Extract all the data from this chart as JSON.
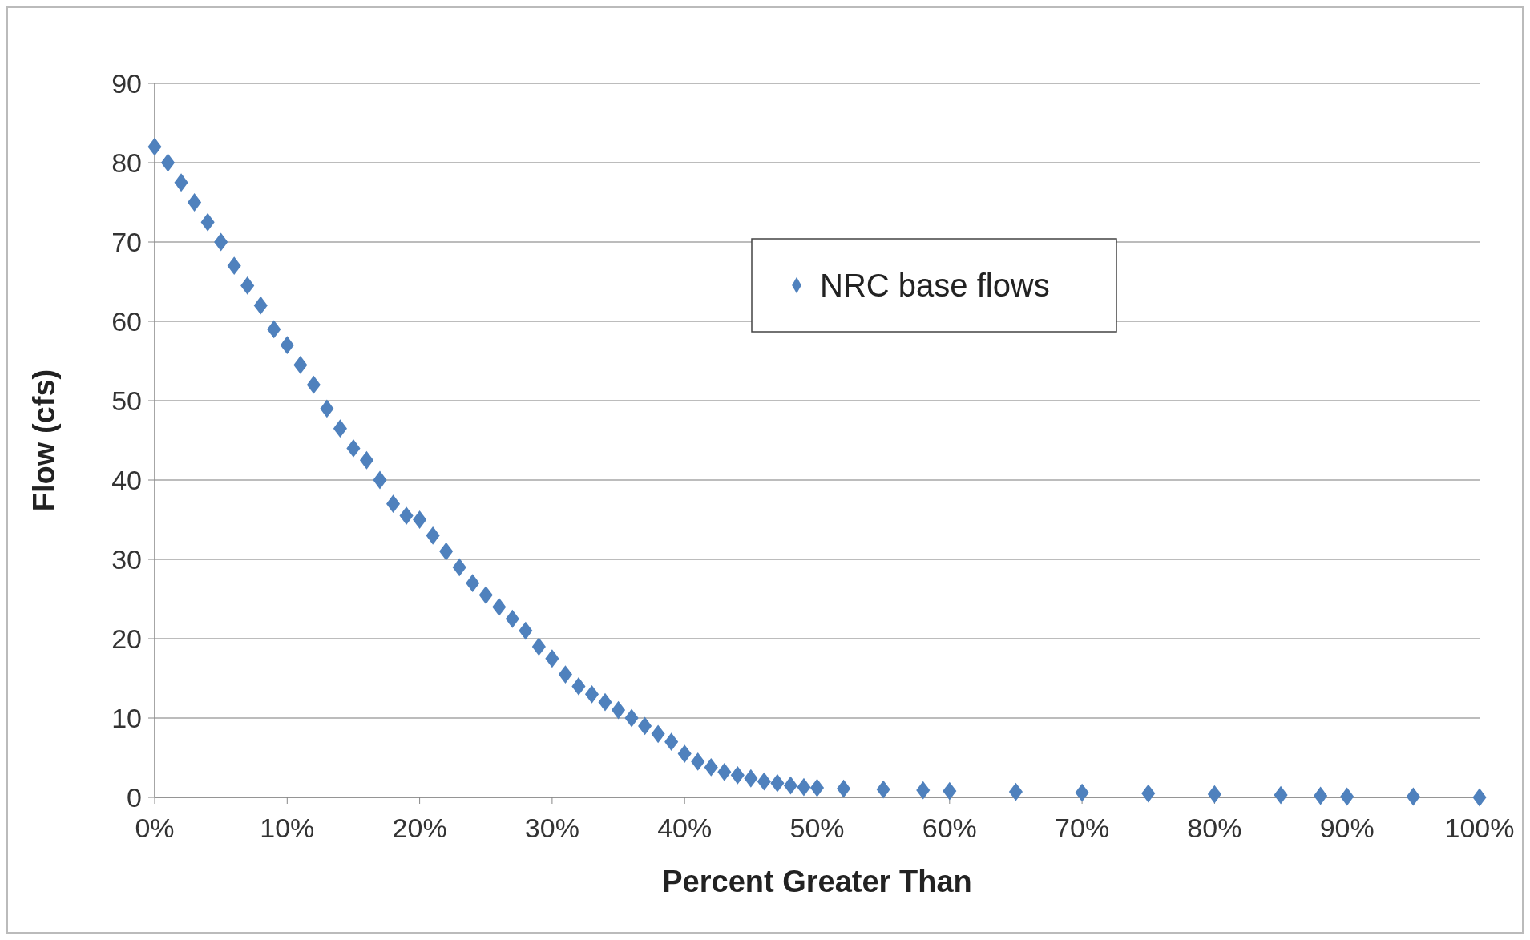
{
  "chart_data": {
    "type": "scatter",
    "xlabel": "Percent Greater Than",
    "ylabel": "Flow (cfs)",
    "x": [
      0,
      1,
      2,
      3,
      4,
      5,
      6,
      7,
      8,
      9,
      10,
      11,
      12,
      13,
      14,
      15,
      16,
      17,
      18,
      19,
      20,
      21,
      22,
      23,
      24,
      25,
      26,
      27,
      28,
      29,
      30,
      31,
      32,
      33,
      34,
      35,
      36,
      37,
      38,
      39,
      40,
      41,
      42,
      43,
      44,
      45,
      46,
      47,
      48,
      49,
      50,
      52,
      55,
      58,
      60,
      65,
      70,
      75,
      80,
      85,
      88,
      90,
      95,
      100
    ],
    "series": [
      {
        "name": "NRC base flows",
        "color": "#4f81bd",
        "values": [
          82,
          80,
          77.5,
          75,
          72.5,
          70,
          67,
          64.5,
          62,
          59,
          57,
          54.5,
          52,
          49,
          46.5,
          44,
          42.5,
          40,
          37,
          35.5,
          35,
          33,
          31,
          29,
          27,
          25.5,
          24,
          22.5,
          21,
          19,
          17.5,
          15.5,
          14,
          13,
          12,
          11,
          10,
          9,
          8,
          7,
          5.5,
          4.5,
          3.8,
          3.2,
          2.8,
          2.4,
          2,
          1.8,
          1.5,
          1.3,
          1.2,
          1.1,
          1,
          0.9,
          0.8,
          0.7,
          0.6,
          0.5,
          0.4,
          0.3,
          0.2,
          0.1,
          0.1,
          0
        ]
      }
    ],
    "xlim": [
      0,
      100
    ],
    "xticks": [
      {
        "value": 0,
        "label": "0%"
      },
      {
        "value": 10,
        "label": "10%"
      },
      {
        "value": 20,
        "label": "20%"
      },
      {
        "value": 30,
        "label": "30%"
      },
      {
        "value": 40,
        "label": "40%"
      },
      {
        "value": 50,
        "label": "50%"
      },
      {
        "value": 60,
        "label": "60%"
      },
      {
        "value": 70,
        "label": "70%"
      },
      {
        "value": 80,
        "label": "80%"
      },
      {
        "value": 90,
        "label": "90%"
      },
      {
        "value": 100,
        "label": "100%"
      }
    ],
    "ylim": [
      0,
      90
    ],
    "yticks": [
      0,
      10,
      20,
      30,
      40,
      50,
      60,
      70,
      80,
      90
    ],
    "grid": "y",
    "legend": "top right",
    "marker": "diamond"
  }
}
